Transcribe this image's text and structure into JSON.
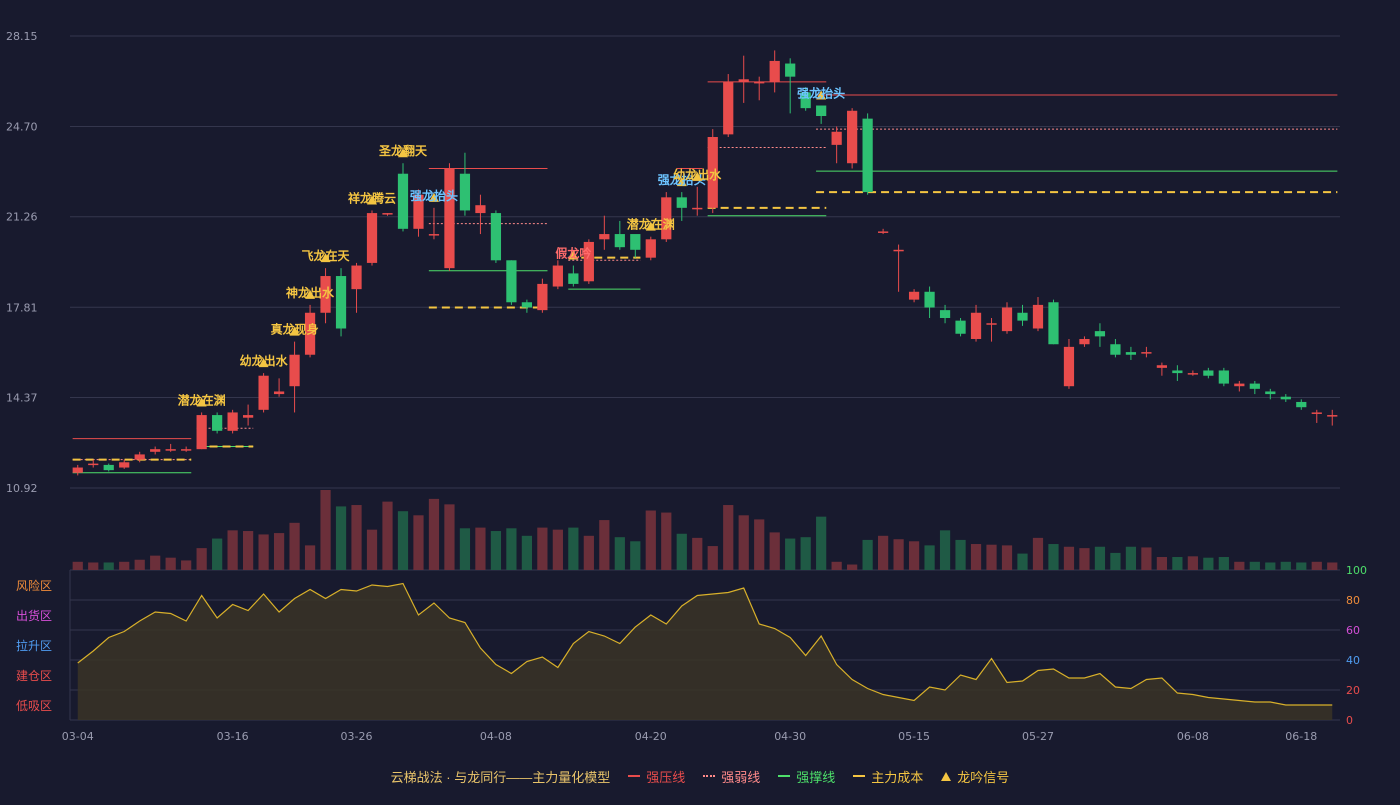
{
  "chart_data": {
    "type": "candlestick",
    "dates": [
      "03-04",
      "03-05",
      "03-06",
      "03-07",
      "03-08",
      "03-11",
      "03-12",
      "03-13",
      "03-14",
      "03-15",
      "03-16",
      "03-17",
      "03-18",
      "03-19",
      "03-20",
      "03-21",
      "03-22",
      "03-25",
      "03-26",
      "03-27",
      "03-28",
      "03-29",
      "04-01",
      "04-02",
      "04-03",
      "04-04",
      "04-05",
      "04-08",
      "04-09",
      "04-10",
      "04-11",
      "04-12",
      "04-15",
      "04-16",
      "04-17",
      "04-18",
      "04-19",
      "04-20",
      "04-22",
      "04-23",
      "04-24",
      "04-25",
      "04-26",
      "04-27",
      "04-28",
      "04-29",
      "04-30",
      "05-06",
      "05-07",
      "05-08",
      "05-09",
      "05-10",
      "05-13",
      "05-14",
      "05-15",
      "05-16",
      "05-17",
      "05-20",
      "05-21",
      "05-22",
      "05-23",
      "05-24",
      "05-27",
      "05-28",
      "05-29",
      "05-30",
      "05-31",
      "06-03",
      "06-04",
      "06-05",
      "06-06",
      "06-07",
      "06-08",
      "06-11",
      "06-12",
      "06-13",
      "06-14",
      "06-15",
      "06-17",
      "06-18",
      "06-19",
      "06-20"
    ],
    "candles": [
      [
        11.5,
        11.7,
        11.4,
        11.8
      ],
      [
        11.8,
        11.85,
        11.7,
        12.0
      ],
      [
        11.8,
        11.6,
        11.55,
        11.85
      ],
      [
        11.7,
        11.9,
        11.65,
        12.0
      ],
      [
        12.0,
        12.2,
        11.9,
        12.3
      ],
      [
        12.3,
        12.4,
        12.2,
        12.5
      ],
      [
        12.4,
        12.4,
        12.3,
        12.6
      ],
      [
        12.4,
        12.4,
        12.3,
        12.5
      ],
      [
        12.4,
        13.7,
        12.4,
        13.8
      ],
      [
        13.7,
        13.1,
        13.0,
        13.8
      ],
      [
        13.1,
        13.8,
        13.0,
        13.9
      ],
      [
        13.6,
        13.7,
        13.3,
        14.1
      ],
      [
        13.9,
        15.2,
        13.8,
        15.3
      ],
      [
        14.5,
        14.6,
        14.4,
        15.1
      ],
      [
        14.8,
        16.0,
        13.8,
        16.5
      ],
      [
        16.0,
        17.6,
        15.9,
        17.9
      ],
      [
        17.6,
        19.0,
        17.2,
        19.3
      ],
      [
        19.0,
        17.0,
        16.7,
        19.3
      ],
      [
        18.5,
        19.4,
        17.6,
        19.5
      ],
      [
        19.5,
        21.4,
        19.4,
        21.5
      ],
      [
        21.4,
        21.4,
        21.3,
        21.4
      ],
      [
        22.9,
        20.8,
        20.7,
        23.3
      ],
      [
        20.8,
        22.1,
        20.5,
        22.3
      ],
      [
        20.6,
        20.6,
        20.4,
        21.6
      ],
      [
        19.3,
        23.1,
        19.2,
        23.3
      ],
      [
        22.9,
        21.5,
        21.3,
        23.7
      ],
      [
        21.4,
        21.7,
        20.6,
        22.1
      ],
      [
        21.4,
        19.6,
        19.5,
        21.5
      ],
      [
        19.6,
        18.0,
        17.9,
        19.6
      ],
      [
        18.0,
        17.8,
        17.6,
        18.1
      ],
      [
        17.7,
        18.7,
        17.6,
        18.9
      ],
      [
        18.6,
        19.4,
        18.5,
        19.6
      ],
      [
        19.1,
        18.7,
        18.6,
        19.4
      ],
      [
        18.8,
        20.3,
        18.7,
        20.4
      ],
      [
        20.4,
        20.6,
        20.0,
        21.3
      ],
      [
        20.6,
        20.1,
        20.0,
        21.1
      ],
      [
        20.6,
        20.0,
        19.7,
        20.5
      ],
      [
        19.7,
        20.4,
        19.6,
        20.5
      ],
      [
        20.4,
        22.0,
        20.3,
        22.2
      ],
      [
        22.0,
        21.6,
        21.1,
        22.2
      ],
      [
        21.6,
        21.6,
        21.3,
        22.4
      ],
      [
        21.6,
        24.3,
        21.4,
        24.6
      ],
      [
        24.4,
        26.4,
        24.3,
        26.7
      ],
      [
        26.4,
        26.5,
        25.6,
        27.4
      ],
      [
        26.4,
        26.4,
        25.7,
        26.6
      ],
      [
        26.4,
        27.2,
        26.0,
        27.6
      ],
      [
        27.1,
        26.6,
        25.2,
        27.3
      ],
      [
        26.0,
        25.4,
        25.3,
        26.2
      ],
      [
        25.5,
        25.1,
        24.8,
        25.5
      ],
      [
        24.0,
        24.5,
        23.3,
        24.7
      ],
      [
        23.3,
        25.3,
        23.1,
        25.4
      ],
      [
        25.0,
        22.2,
        22.1,
        25.2
      ],
      [
        20.7,
        20.7,
        20.6,
        20.8
      ],
      [
        20.0,
        20.0,
        18.4,
        20.2
      ],
      [
        18.1,
        18.4,
        18.0,
        18.5
      ],
      [
        18.4,
        17.8,
        17.4,
        18.6
      ],
      [
        17.7,
        17.4,
        17.2,
        17.9
      ],
      [
        17.3,
        16.8,
        16.7,
        17.4
      ],
      [
        16.6,
        17.6,
        16.5,
        17.9
      ],
      [
        17.2,
        17.2,
        16.5,
        17.4
      ],
      [
        16.9,
        17.8,
        16.8,
        18.0
      ],
      [
        17.6,
        17.3,
        17.1,
        17.9
      ],
      [
        17.0,
        17.9,
        16.9,
        18.2
      ],
      [
        18.0,
        16.4,
        16.4,
        18.1
      ],
      [
        14.8,
        16.3,
        14.7,
        16.6
      ],
      [
        16.4,
        16.6,
        16.3,
        16.7
      ],
      [
        16.9,
        16.7,
        16.3,
        17.2
      ],
      [
        16.4,
        16.0,
        15.9,
        16.6
      ],
      [
        16.1,
        16.0,
        15.8,
        16.3
      ],
      [
        16.1,
        16.1,
        15.9,
        16.3
      ],
      [
        15.5,
        15.6,
        15.2,
        15.7
      ],
      [
        15.4,
        15.3,
        15.0,
        15.6
      ],
      [
        15.3,
        15.3,
        15.2,
        15.4
      ],
      [
        15.4,
        15.2,
        15.1,
        15.5
      ],
      [
        15.4,
        14.9,
        14.8,
        15.5
      ],
      [
        14.8,
        14.9,
        14.6,
        15.0
      ],
      [
        14.9,
        14.7,
        14.5,
        15.0
      ],
      [
        14.6,
        14.5,
        14.3,
        14.7
      ],
      [
        14.4,
        14.3,
        14.2,
        14.5
      ],
      [
        14.2,
        14.0,
        13.9,
        14.3
      ],
      [
        13.8,
        13.8,
        13.4,
        13.9
      ],
      [
        13.7,
        13.7,
        13.3,
        13.9
      ]
    ],
    "volume": [
      12,
      11,
      11,
      12,
      15,
      21,
      18,
      14,
      32,
      46,
      58,
      57,
      52,
      54,
      69,
      36,
      117,
      93,
      95,
      59,
      100,
      86,
      80,
      104,
      96,
      61,
      62,
      57,
      61,
      50,
      62,
      59,
      62,
      50,
      73,
      48,
      42,
      87,
      84,
      53,
      47,
      35,
      95,
      80,
      74,
      55,
      46,
      48,
      78,
      12,
      8,
      44,
      50,
      45,
      42,
      36,
      58,
      44,
      38,
      37,
      36,
      24,
      47,
      38,
      34,
      32,
      34,
      25,
      34,
      33,
      19,
      19,
      20,
      18,
      19,
      12,
      12,
      11,
      12,
      11,
      12,
      11
    ],
    "oscillator": [
      38,
      46,
      55,
      59,
      66,
      72,
      71,
      66,
      83,
      68,
      77,
      73,
      84,
      72,
      81,
      87,
      81,
      87,
      86,
      90,
      89,
      91,
      70,
      78,
      68,
      65,
      48,
      37,
      31,
      39,
      42,
      35,
      51,
      59,
      56,
      51,
      62,
      70,
      64,
      76,
      83,
      84,
      85,
      88,
      64,
      61,
      55,
      43,
      56,
      37,
      27,
      21,
      17,
      15,
      13,
      22,
      20,
      30,
      27,
      41,
      25,
      26,
      33,
      34,
      28,
      28,
      31,
      22,
      21,
      27,
      28,
      18,
      17,
      15,
      14,
      13,
      12,
      12,
      10,
      10,
      10,
      10
    ],
    "y_ticks": [
      "10.92",
      "14.37",
      "17.81",
      "21.26",
      "24.70",
      "28.15"
    ],
    "x_ticks": [
      "03-04",
      "03-16",
      "03-26",
      "04-08",
      "04-20",
      "04-30",
      "05-15",
      "05-27",
      "06-08",
      "06-18"
    ],
    "osc_ticks": [
      "0",
      "20",
      "40",
      "60",
      "80",
      "100"
    ],
    "zones": [
      {
        "label": "风险区",
        "color": "#f08c3a"
      },
      {
        "label": "出货区",
        "color": "#d64fd8"
      },
      {
        "label": "拉升区",
        "color": "#4f9cf0"
      },
      {
        "label": "建仓区",
        "color": "#e84c4c"
      },
      {
        "label": "低吸区",
        "color": "#e84c4c"
      }
    ],
    "signals": [
      {
        "i": 8,
        "text": "潜龙在渊",
        "color": "#f4c542"
      },
      {
        "i": 12,
        "text": "幼龙出水",
        "color": "#f4c542"
      },
      {
        "i": 14,
        "text": "真龙现身",
        "color": "#f4c542"
      },
      {
        "i": 15,
        "text": "神龙出水",
        "color": "#f4c542"
      },
      {
        "i": 16,
        "text": "飞龙在天",
        "color": "#f4c542"
      },
      {
        "i": 19,
        "text": "祥龙腾云",
        "color": "#f4c542"
      },
      {
        "i": 21,
        "text": "圣龙翻天",
        "color": "#f4c542"
      },
      {
        "i": 23,
        "text": "强龙抬头",
        "color": "#6cc4ff"
      },
      {
        "i": 32,
        "text": "假龙吟",
        "color": "#ff6b6b"
      },
      {
        "i": 37,
        "text": "潜龙在渊",
        "color": "#f4c542"
      },
      {
        "i": 39,
        "text": "强龙抬头",
        "color": "#6cc4ff"
      },
      {
        "i": 40,
        "text": "幼龙出水",
        "color": "#f4c542"
      },
      {
        "i": 48,
        "text": "强龙抬头",
        "color": "#6cc4ff"
      }
    ],
    "levels": [
      {
        "type": "resist",
        "from": 0,
        "to": 7,
        "price": 12.8
      },
      {
        "type": "weak",
        "from": 0,
        "to": 7,
        "price": 12.0
      },
      {
        "type": "support",
        "from": 0,
        "to": 7,
        "price": 11.5
      },
      {
        "type": "cost",
        "from": 0,
        "to": 7,
        "price": 12.0
      },
      {
        "type": "weak",
        "from": 8,
        "to": 11,
        "price": 13.2
      },
      {
        "type": "support",
        "from": 8,
        "to": 11,
        "price": 12.5
      },
      {
        "type": "cost",
        "from": 8,
        "to": 11,
        "price": 12.5
      },
      {
        "type": "resist",
        "from": 23,
        "to": 30,
        "price": 23.1
      },
      {
        "type": "weak",
        "from": 23,
        "to": 30,
        "price": 21.0
      },
      {
        "type": "support",
        "from": 23,
        "to": 30,
        "price": 19.2
      },
      {
        "type": "cost",
        "from": 23,
        "to": 30,
        "price": 17.8
      },
      {
        "type": "weak",
        "from": 32,
        "to": 36,
        "price": 19.6
      },
      {
        "type": "support",
        "from": 32,
        "to": 36,
        "price": 18.5
      },
      {
        "type": "cost",
        "from": 32,
        "to": 36,
        "price": 19.7
      },
      {
        "type": "resist",
        "from": 39,
        "to": 40,
        "price": 23.1
      },
      {
        "type": "resist",
        "from": 41,
        "to": 48,
        "price": 26.4
      },
      {
        "type": "weak",
        "from": 41,
        "to": 48,
        "price": 23.9
      },
      {
        "type": "support",
        "from": 41,
        "to": 48,
        "price": 21.3
      },
      {
        "type": "cost",
        "from": 41,
        "to": 48,
        "price": 21.6
      },
      {
        "type": "resist",
        "from": 48,
        "to": 81,
        "price": 25.9
      },
      {
        "type": "weak",
        "from": 48,
        "to": 81,
        "price": 24.6
      },
      {
        "type": "support",
        "from": 48,
        "to": 81,
        "price": 23.0
      },
      {
        "type": "cost",
        "from": 48,
        "to": 81,
        "price": 22.2
      }
    ],
    "legend": {
      "title": "云梯战法 · 与龙同行——主力量化模型",
      "items": [
        {
          "label": "强压线",
          "color": "#e84c4c",
          "style": "line"
        },
        {
          "label": "强弱线",
          "color": "#ff8a8a",
          "style": "dot"
        },
        {
          "label": "强撑线",
          "color": "#4ddf6a",
          "style": "line"
        },
        {
          "label": "主力成本",
          "color": "#f4c542",
          "style": "dash"
        },
        {
          "label": "龙吟信号",
          "color": "#f4c542",
          "style": "triangle"
        }
      ]
    },
    "colors": {
      "up": "#e84c4c",
      "down": "#2ec072",
      "grid": "#34364d",
      "axis_text": "#9a9cb0",
      "osc_line": "#d8b02a"
    }
  }
}
